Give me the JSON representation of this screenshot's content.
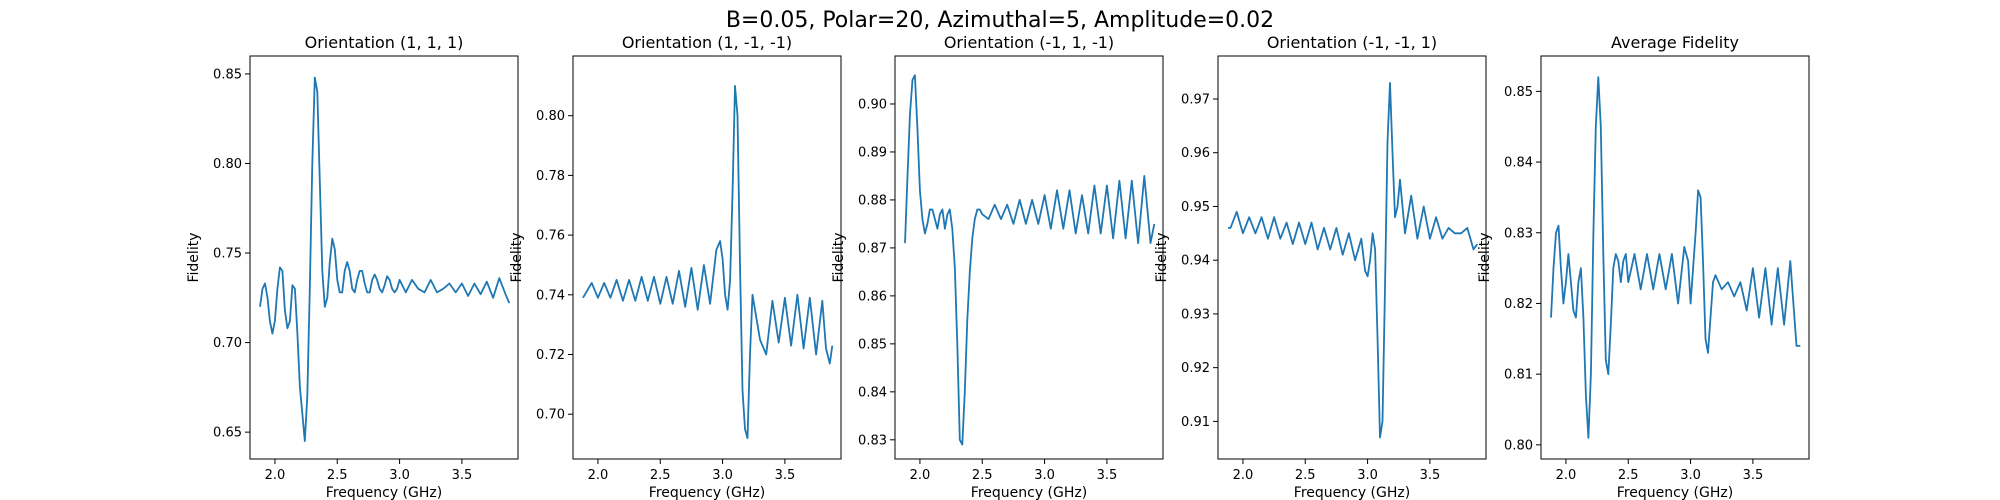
{
  "figure": {
    "suptitle": "B=0.05, Polar=20, Azimuthal=5, Amplitude=0.02"
  },
  "chart_data": [
    {
      "type": "line",
      "title": "Orientation (1, 1, 1)",
      "xlabel": "Frequency (GHz)",
      "ylabel": "Fidelity",
      "xlim": [
        1.8,
        3.95
      ],
      "ylim": [
        0.635,
        0.86
      ],
      "xticks": [
        "2.0",
        "2.5",
        "3.0",
        "3.5"
      ],
      "yticks": [
        "0.65",
        "0.70",
        "0.75",
        "0.80",
        "0.85"
      ],
      "color": "#1f77b4",
      "series": [
        {
          "x": [
            1.88,
            1.9,
            1.92,
            1.94,
            1.96,
            1.98,
            2.0,
            2.02,
            2.04,
            2.06,
            2.08,
            2.1,
            2.12,
            2.14,
            2.16,
            2.18,
            2.2,
            2.22,
            2.24,
            2.26,
            2.28,
            2.3,
            2.32,
            2.34,
            2.36,
            2.38,
            2.4,
            2.42,
            2.44,
            2.46,
            2.48,
            2.5,
            2.52,
            2.54,
            2.56,
            2.58,
            2.6,
            2.62,
            2.64,
            2.66,
            2.68,
            2.7,
            2.72,
            2.74,
            2.76,
            2.78,
            2.8,
            2.82,
            2.84,
            2.86,
            2.88,
            2.9,
            2.92,
            2.94,
            2.96,
            2.98,
            3.0,
            3.05,
            3.1,
            3.15,
            3.2,
            3.25,
            3.3,
            3.35,
            3.4,
            3.45,
            3.5,
            3.55,
            3.6,
            3.65,
            3.7,
            3.75,
            3.8,
            3.85,
            3.88
          ],
          "y": [
            0.72,
            0.73,
            0.733,
            0.725,
            0.712,
            0.705,
            0.712,
            0.73,
            0.742,
            0.74,
            0.718,
            0.708,
            0.712,
            0.732,
            0.73,
            0.705,
            0.675,
            0.66,
            0.645,
            0.67,
            0.73,
            0.8,
            0.848,
            0.84,
            0.79,
            0.74,
            0.72,
            0.725,
            0.745,
            0.758,
            0.752,
            0.735,
            0.728,
            0.728,
            0.74,
            0.745,
            0.74,
            0.73,
            0.728,
            0.735,
            0.74,
            0.74,
            0.733,
            0.728,
            0.728,
            0.735,
            0.738,
            0.735,
            0.73,
            0.728,
            0.732,
            0.737,
            0.735,
            0.73,
            0.728,
            0.73,
            0.735,
            0.728,
            0.735,
            0.73,
            0.728,
            0.735,
            0.728,
            0.73,
            0.733,
            0.728,
            0.733,
            0.726,
            0.733,
            0.727,
            0.734,
            0.725,
            0.736,
            0.727,
            0.722
          ]
        }
      ]
    },
    {
      "type": "line",
      "title": "Orientation (1, -1, -1)",
      "xlabel": "Frequency (GHz)",
      "ylabel": "Fidelity",
      "xlim": [
        1.8,
        3.95
      ],
      "ylim": [
        0.685,
        0.82
      ],
      "xticks": [
        "2.0",
        "2.5",
        "3.0",
        "3.5"
      ],
      "yticks": [
        "0.70",
        "0.72",
        "0.74",
        "0.76",
        "0.78",
        "0.80"
      ],
      "color": "#1f77b4",
      "series": [
        {
          "x": [
            1.88,
            1.95,
            2.0,
            2.05,
            2.1,
            2.15,
            2.2,
            2.25,
            2.3,
            2.35,
            2.4,
            2.45,
            2.5,
            2.55,
            2.6,
            2.65,
            2.7,
            2.75,
            2.8,
            2.85,
            2.9,
            2.95,
            2.98,
            3.0,
            3.02,
            3.04,
            3.06,
            3.08,
            3.1,
            3.12,
            3.14,
            3.16,
            3.18,
            3.2,
            3.22,
            3.24,
            3.26,
            3.3,
            3.35,
            3.4,
            3.45,
            3.5,
            3.55,
            3.6,
            3.65,
            3.7,
            3.75,
            3.8,
            3.83,
            3.86,
            3.88
          ],
          "y": [
            0.739,
            0.744,
            0.739,
            0.744,
            0.739,
            0.745,
            0.738,
            0.745,
            0.738,
            0.746,
            0.738,
            0.746,
            0.737,
            0.746,
            0.737,
            0.748,
            0.736,
            0.749,
            0.735,
            0.75,
            0.737,
            0.755,
            0.758,
            0.752,
            0.74,
            0.735,
            0.745,
            0.775,
            0.81,
            0.8,
            0.75,
            0.708,
            0.695,
            0.692,
            0.72,
            0.74,
            0.735,
            0.725,
            0.72,
            0.738,
            0.724,
            0.739,
            0.723,
            0.74,
            0.722,
            0.739,
            0.72,
            0.738,
            0.722,
            0.717,
            0.723
          ]
        }
      ]
    },
    {
      "type": "line",
      "title": "Orientation (-1, 1, -1)",
      "xlabel": "Frequency (GHz)",
      "ylabel": "Fidelity",
      "xlim": [
        1.8,
        3.95
      ],
      "ylim": [
        0.826,
        0.91
      ],
      "xticks": [
        "2.0",
        "2.5",
        "3.0",
        "3.5"
      ],
      "yticks": [
        "0.83",
        "0.84",
        "0.85",
        "0.86",
        "0.87",
        "0.88",
        "0.89",
        "0.90"
      ],
      "color": "#1f77b4",
      "series": [
        {
          "x": [
            1.88,
            1.9,
            1.92,
            1.94,
            1.96,
            1.98,
            2.0,
            2.02,
            2.04,
            2.06,
            2.08,
            2.1,
            2.12,
            2.14,
            2.16,
            2.18,
            2.2,
            2.22,
            2.24,
            2.26,
            2.28,
            2.3,
            2.32,
            2.34,
            2.36,
            2.38,
            2.4,
            2.42,
            2.44,
            2.46,
            2.48,
            2.5,
            2.55,
            2.6,
            2.65,
            2.7,
            2.75,
            2.8,
            2.85,
            2.9,
            2.95,
            3.0,
            3.05,
            3.1,
            3.15,
            3.2,
            3.25,
            3.3,
            3.35,
            3.4,
            3.45,
            3.5,
            3.55,
            3.6,
            3.65,
            3.7,
            3.75,
            3.8,
            3.85,
            3.88
          ],
          "y": [
            0.871,
            0.885,
            0.898,
            0.905,
            0.906,
            0.895,
            0.882,
            0.876,
            0.873,
            0.875,
            0.878,
            0.878,
            0.876,
            0.874,
            0.877,
            0.878,
            0.874,
            0.877,
            0.878,
            0.874,
            0.866,
            0.85,
            0.83,
            0.829,
            0.84,
            0.855,
            0.865,
            0.872,
            0.876,
            0.878,
            0.878,
            0.877,
            0.876,
            0.879,
            0.876,
            0.879,
            0.875,
            0.88,
            0.875,
            0.88,
            0.875,
            0.881,
            0.874,
            0.882,
            0.874,
            0.882,
            0.873,
            0.881,
            0.873,
            0.883,
            0.873,
            0.883,
            0.872,
            0.884,
            0.872,
            0.884,
            0.871,
            0.885,
            0.871,
            0.875
          ]
        }
      ]
    },
    {
      "type": "line",
      "title": "Orientation (-1, -1, 1)",
      "xlabel": "Frequency (GHz)",
      "ylabel": "Fidelity",
      "xlim": [
        1.8,
        3.95
      ],
      "ylim": [
        0.903,
        0.978
      ],
      "xticks": [
        "2.0",
        "2.5",
        "3.0",
        "3.5"
      ],
      "yticks": [
        "0.91",
        "0.92",
        "0.93",
        "0.94",
        "0.95",
        "0.96",
        "0.97"
      ],
      "color": "#1f77b4",
      "series": [
        {
          "x": [
            1.88,
            1.9,
            1.95,
            2.0,
            2.05,
            2.1,
            2.15,
            2.2,
            2.25,
            2.3,
            2.35,
            2.4,
            2.45,
            2.5,
            2.55,
            2.6,
            2.65,
            2.7,
            2.75,
            2.8,
            2.85,
            2.9,
            2.95,
            2.98,
            3.0,
            3.02,
            3.04,
            3.06,
            3.08,
            3.1,
            3.12,
            3.14,
            3.16,
            3.18,
            3.2,
            3.22,
            3.24,
            3.26,
            3.3,
            3.35,
            3.4,
            3.45,
            3.5,
            3.55,
            3.6,
            3.65,
            3.7,
            3.75,
            3.8,
            3.85,
            3.88
          ],
          "y": [
            0.946,
            0.946,
            0.949,
            0.945,
            0.948,
            0.945,
            0.948,
            0.944,
            0.948,
            0.944,
            0.947,
            0.943,
            0.947,
            0.943,
            0.947,
            0.942,
            0.946,
            0.942,
            0.946,
            0.941,
            0.945,
            0.94,
            0.944,
            0.938,
            0.937,
            0.94,
            0.945,
            0.942,
            0.925,
            0.907,
            0.91,
            0.935,
            0.962,
            0.973,
            0.96,
            0.948,
            0.95,
            0.955,
            0.945,
            0.952,
            0.944,
            0.95,
            0.944,
            0.948,
            0.944,
            0.946,
            0.945,
            0.945,
            0.946,
            0.942,
            0.943
          ]
        }
      ]
    },
    {
      "type": "line",
      "title": "Average Fidelity",
      "xlabel": "Frequency (GHz)",
      "ylabel": "Fidelity",
      "xlim": [
        1.8,
        3.95
      ],
      "ylim": [
        0.798,
        0.855
      ],
      "xticks": [
        "2.0",
        "2.5",
        "3.0",
        "3.5"
      ],
      "yticks": [
        "0.80",
        "0.81",
        "0.82",
        "0.83",
        "0.84",
        "0.85"
      ],
      "color": "#1f77b4",
      "series": [
        {
          "x": [
            1.88,
            1.9,
            1.92,
            1.94,
            1.96,
            1.98,
            2.0,
            2.02,
            2.04,
            2.06,
            2.08,
            2.1,
            2.12,
            2.14,
            2.16,
            2.18,
            2.2,
            2.22,
            2.24,
            2.26,
            2.28,
            2.3,
            2.32,
            2.34,
            2.36,
            2.38,
            2.4,
            2.42,
            2.44,
            2.46,
            2.48,
            2.5,
            2.55,
            2.6,
            2.65,
            2.7,
            2.75,
            2.8,
            2.85,
            2.9,
            2.95,
            2.98,
            3.0,
            3.02,
            3.04,
            3.06,
            3.08,
            3.1,
            3.12,
            3.14,
            3.16,
            3.18,
            3.2,
            3.25,
            3.3,
            3.35,
            3.4,
            3.45,
            3.5,
            3.55,
            3.6,
            3.65,
            3.7,
            3.75,
            3.8,
            3.85,
            3.88
          ],
          "y": [
            0.818,
            0.825,
            0.83,
            0.831,
            0.825,
            0.82,
            0.823,
            0.827,
            0.823,
            0.819,
            0.818,
            0.823,
            0.825,
            0.818,
            0.807,
            0.801,
            0.81,
            0.83,
            0.845,
            0.852,
            0.845,
            0.827,
            0.812,
            0.81,
            0.817,
            0.825,
            0.827,
            0.826,
            0.823,
            0.826,
            0.827,
            0.823,
            0.827,
            0.822,
            0.827,
            0.822,
            0.827,
            0.822,
            0.827,
            0.82,
            0.828,
            0.826,
            0.82,
            0.825,
            0.83,
            0.836,
            0.835,
            0.826,
            0.815,
            0.813,
            0.818,
            0.823,
            0.824,
            0.822,
            0.823,
            0.821,
            0.823,
            0.819,
            0.825,
            0.818,
            0.825,
            0.817,
            0.825,
            0.817,
            0.826,
            0.814,
            0.814
          ]
        }
      ]
    }
  ]
}
